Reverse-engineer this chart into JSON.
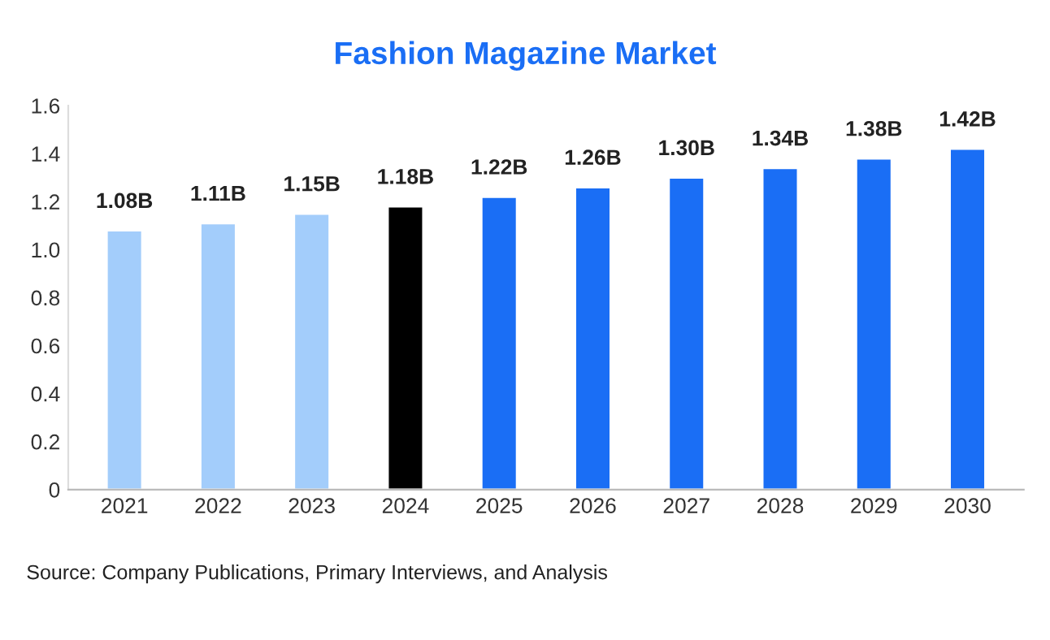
{
  "chart_data": {
    "type": "bar",
    "title": "Fashion Magazine Market",
    "categories": [
      "2021",
      "2022",
      "2023",
      "2024",
      "2025",
      "2026",
      "2027",
      "2028",
      "2029",
      "2030"
    ],
    "values": [
      1.08,
      1.11,
      1.15,
      1.18,
      1.22,
      1.26,
      1.3,
      1.34,
      1.38,
      1.42
    ],
    "value_labels": [
      "1.08B",
      "1.11B",
      "1.15B",
      "1.18B",
      "1.22B",
      "1.26B",
      "1.30B",
      "1.34B",
      "1.38B",
      "1.42B"
    ],
    "colors": [
      "#a3cdfb",
      "#a3cdfb",
      "#a3cdfb",
      "#000000",
      "#1a6ef5",
      "#1a6ef5",
      "#1a6ef5",
      "#1a6ef5",
      "#1a6ef5",
      "#1a6ef5"
    ],
    "ylim": [
      0,
      1.6
    ],
    "yticks": [
      0,
      0.2,
      0.4,
      0.6,
      0.8,
      {
        "value": 1.0,
        "label": "1.0"
      },
      1.2,
      1.4,
      1.6
    ],
    "grid": false,
    "annotations": [
      "Source: Company Publications, Primary Interviews, and Analysis"
    ]
  }
}
